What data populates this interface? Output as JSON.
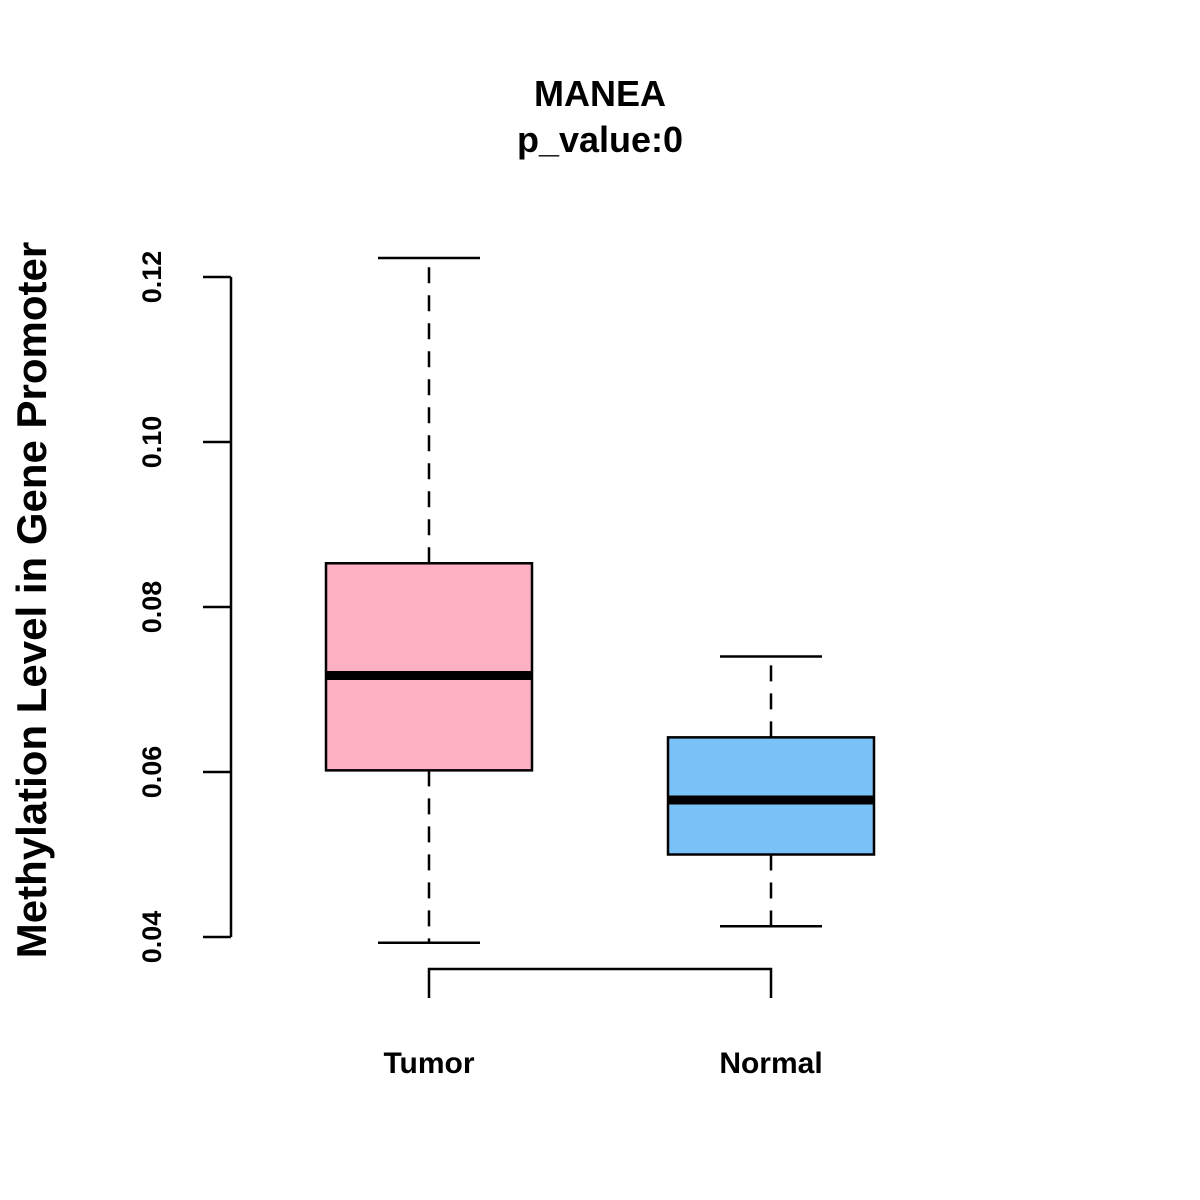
{
  "chart_data": {
    "type": "boxplot",
    "title": "MANEA",
    "subtitle": "p_value:0",
    "xlabel": "",
    "ylabel": "Methylation Level in Gene Promoter",
    "ylim": [
      0.04,
      0.12
    ],
    "yticks": [
      0.04,
      0.06,
      0.08,
      0.1,
      0.12
    ],
    "ytick_labels": [
      "0.04",
      "0.06",
      "0.08",
      "0.10",
      "0.12"
    ],
    "categories": [
      "Tumor",
      "Normal"
    ],
    "series": [
      {
        "name": "Tumor",
        "whisker_low": 0.0393,
        "q1": 0.0602,
        "median": 0.0717,
        "q3": 0.0853,
        "whisker_high": 0.1223,
        "color": "#ffb1c4"
      },
      {
        "name": "Normal",
        "whisker_low": 0.0413,
        "q1": 0.05,
        "median": 0.0566,
        "q3": 0.0642,
        "whisker_high": 0.074,
        "color": "#7ac1f7"
      }
    ],
    "comparison_bracket": [
      "Tumor",
      "Normal"
    ],
    "grid": false,
    "legend": "none"
  }
}
